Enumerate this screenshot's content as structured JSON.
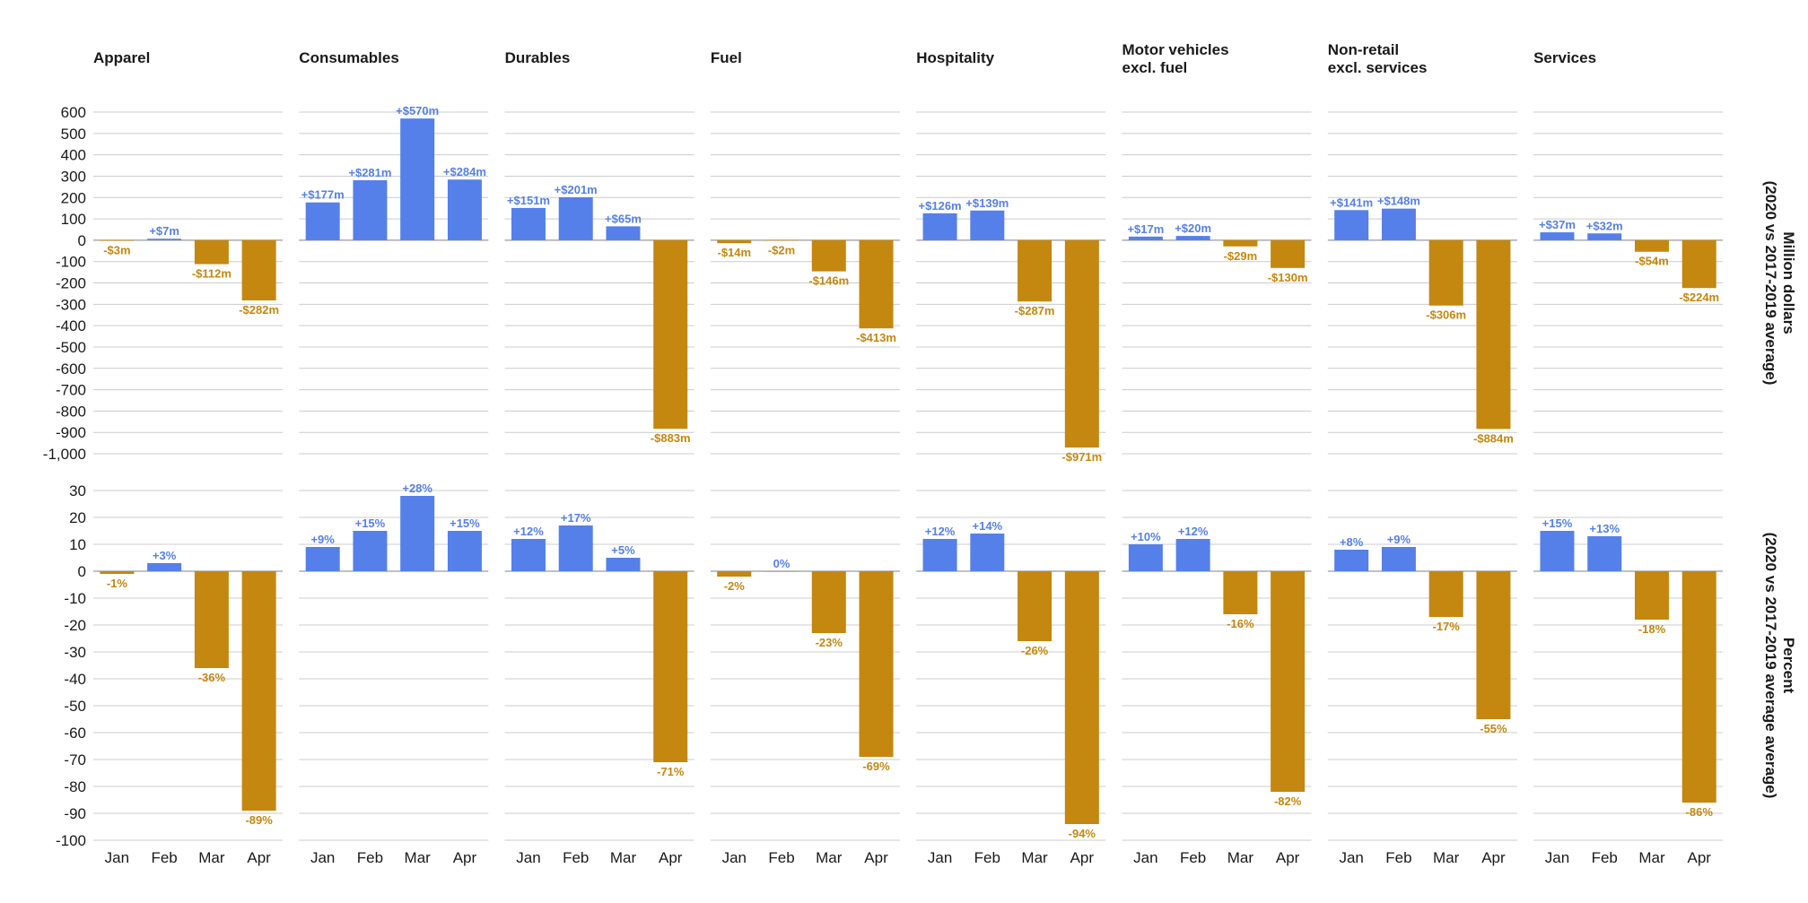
{
  "colors": {
    "positive": "#5580ea",
    "negative": "#c4870f",
    "grid": "#cccccc",
    "text": "#1a1a1a"
  },
  "chart_data": {
    "type": "bar",
    "grid": true,
    "categories": [
      "Jan",
      "Feb",
      "Mar",
      "Apr"
    ],
    "facets": [
      {
        "title": [
          "Apparel"
        ]
      },
      {
        "title": [
          "Consumables"
        ]
      },
      {
        "title": [
          "Durables"
        ]
      },
      {
        "title": [
          "Fuel"
        ]
      },
      {
        "title": [
          "Hospitality"
        ]
      },
      {
        "title": [
          "Motor vehicles",
          "excl. fuel"
        ]
      },
      {
        "title": [
          "Non-retail",
          "excl. services"
        ]
      },
      {
        "title": [
          "Services"
        ]
      }
    ],
    "rows": [
      {
        "ylabel": [
          "Million dollars",
          "(2020 vs 2017-2019 average)"
        ],
        "ylim": [
          -1000,
          600
        ],
        "ticks": [
          600,
          500,
          400,
          300,
          200,
          100,
          0,
          -100,
          -200,
          -300,
          -400,
          -500,
          -600,
          -700,
          -800,
          -900,
          -1000
        ],
        "tick_labels": [
          "600",
          "500",
          "400",
          "300",
          "200",
          "100",
          "0",
          "-100",
          "-200",
          "-300",
          "-400",
          "-500",
          "-600",
          "-700",
          "-800",
          "-900",
          "-1,000"
        ],
        "values": [
          [
            -3,
            7,
            -112,
            -282
          ],
          [
            177,
            281,
            570,
            284
          ],
          [
            151,
            201,
            65,
            -883
          ],
          [
            -14,
            -2,
            -146,
            -413
          ],
          [
            126,
            139,
            -287,
            -971
          ],
          [
            17,
            20,
            -29,
            -130
          ],
          [
            141,
            148,
            -306,
            -884
          ],
          [
            37,
            32,
            -54,
            -224
          ]
        ],
        "labels": [
          [
            "-$3m",
            "+$7m",
            "-$112m",
            "-$282m"
          ],
          [
            "+$177m",
            "+$281m",
            "+$570m",
            "+$284m"
          ],
          [
            "+$151m",
            "+$201m",
            "+$65m",
            "-$883m"
          ],
          [
            "-$14m",
            "-$2m",
            "-$146m",
            "-$413m"
          ],
          [
            "+$126m",
            "+$139m",
            "-$287m",
            "-$971m"
          ],
          [
            "+$17m",
            "+$20m",
            "-$29m",
            "-$130m"
          ],
          [
            "+$141m",
            "+$148m",
            "-$306m",
            "-$884m"
          ],
          [
            "+$37m",
            "+$32m",
            "-$54m",
            "-$224m"
          ]
        ]
      },
      {
        "ylabel": [
          "Percent",
          "(2020 vs 2017-2019 average average)"
        ],
        "ylim": [
          -100,
          30
        ],
        "ticks": [
          30,
          20,
          10,
          0,
          -10,
          -20,
          -30,
          -40,
          -50,
          -60,
          -70,
          -80,
          -90,
          -100
        ],
        "tick_labels": [
          "30",
          "20",
          "10",
          "0",
          "-10",
          "-20",
          "-30",
          "-40",
          "-50",
          "-60",
          "-70",
          "-80",
          "-90",
          "-100"
        ],
        "values": [
          [
            -1,
            3,
            -36,
            -89
          ],
          [
            9,
            15,
            28,
            15
          ],
          [
            12,
            17,
            5,
            -71
          ],
          [
            -2,
            0,
            -23,
            -69
          ],
          [
            12,
            14,
            -26,
            -94
          ],
          [
            10,
            12,
            -16,
            -82
          ],
          [
            8,
            9,
            -17,
            -55
          ],
          [
            15,
            13,
            -18,
            -86
          ]
        ],
        "labels": [
          [
            "-1%",
            "+3%",
            "-36%",
            "-89%"
          ],
          [
            "+9%",
            "+15%",
            "+28%",
            "+15%"
          ],
          [
            "+12%",
            "+17%",
            "+5%",
            "-71%"
          ],
          [
            "-2%",
            "0%",
            "-23%",
            "-69%"
          ],
          [
            "+12%",
            "+14%",
            "-26%",
            "-94%"
          ],
          [
            "+10%",
            "+12%",
            "-16%",
            "-82%"
          ],
          [
            "+8%",
            "+9%",
            "-17%",
            "-55%"
          ],
          [
            "+15%",
            "+13%",
            "-18%",
            "-86%"
          ]
        ]
      }
    ]
  }
}
